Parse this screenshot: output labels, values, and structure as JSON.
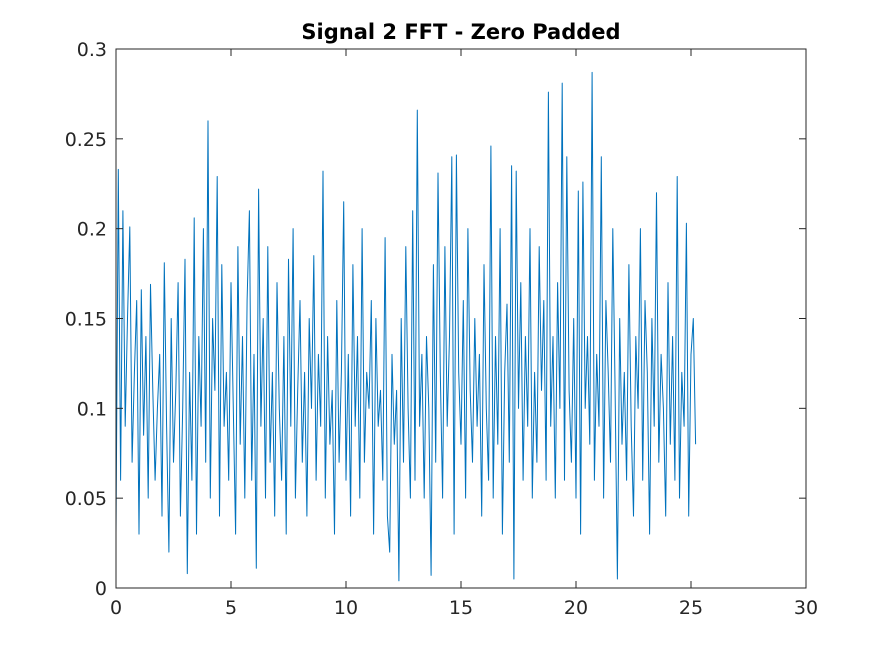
{
  "chart_data": {
    "type": "line",
    "title": "Signal 2 FFT - Zero Padded",
    "xlabel": "",
    "ylabel": "",
    "xlim": [
      0,
      30
    ],
    "ylim": [
      0,
      0.3
    ],
    "xticks": [
      0,
      5,
      10,
      15,
      20,
      25,
      30
    ],
    "yticks": [
      0,
      0.05,
      0.1,
      0.15,
      0.2,
      0.25,
      0.3
    ],
    "xtick_labels": [
      "0",
      "5",
      "10",
      "15",
      "20",
      "25",
      "30"
    ],
    "ytick_labels": [
      "0",
      "0.05",
      "0.1",
      "0.15",
      "0.2",
      "0.25",
      "0.3"
    ],
    "grid": false,
    "series_color": "#0072BD",
    "series": [
      {
        "x_start": 0,
        "x_step": 0.1,
        "values": [
          0.03,
          0.233,
          0.06,
          0.21,
          0.09,
          0.15,
          0.201,
          0.07,
          0.12,
          0.16,
          0.03,
          0.166,
          0.085,
          0.14,
          0.05,
          0.169,
          0.11,
          0.06,
          0.1,
          0.13,
          0.04,
          0.181,
          0.09,
          0.02,
          0.15,
          0.07,
          0.11,
          0.17,
          0.04,
          0.1,
          0.183,
          0.008,
          0.12,
          0.06,
          0.206,
          0.03,
          0.14,
          0.09,
          0.2,
          0.07,
          0.26,
          0.05,
          0.15,
          0.11,
          0.229,
          0.04,
          0.18,
          0.09,
          0.12,
          0.06,
          0.17,
          0.1,
          0.03,
          0.19,
          0.08,
          0.14,
          0.05,
          0.16,
          0.21,
          0.06,
          0.13,
          0.011,
          0.222,
          0.09,
          0.15,
          0.05,
          0.19,
          0.07,
          0.12,
          0.04,
          0.17,
          0.1,
          0.06,
          0.14,
          0.03,
          0.183,
          0.09,
          0.2,
          0.05,
          0.11,
          0.16,
          0.07,
          0.12,
          0.04,
          0.15,
          0.1,
          0.185,
          0.06,
          0.13,
          0.09,
          0.232,
          0.05,
          0.14,
          0.08,
          0.11,
          0.03,
          0.16,
          0.07,
          0.12,
          0.215,
          0.06,
          0.13,
          0.04,
          0.18,
          0.09,
          0.14,
          0.05,
          0.2,
          0.07,
          0.12,
          0.1,
          0.16,
          0.03,
          0.15,
          0.09,
          0.11,
          0.06,
          0.195,
          0.04,
          0.02,
          0.13,
          0.08,
          0.11,
          0.004,
          0.15,
          0.07,
          0.19,
          0.1,
          0.05,
          0.21,
          0.06,
          0.266,
          0.09,
          0.13,
          0.05,
          0.14,
          0.1,
          0.007,
          0.18,
          0.07,
          0.231,
          0.12,
          0.05,
          0.19,
          0.09,
          0.14,
          0.24,
          0.03,
          0.241,
          0.12,
          0.08,
          0.16,
          0.05,
          0.2,
          0.11,
          0.07,
          0.15,
          0.09,
          0.13,
          0.04,
          0.18,
          0.1,
          0.06,
          0.246,
          0.05,
          0.14,
          0.08,
          0.2,
          0.03,
          0.12,
          0.158,
          0.07,
          0.235,
          0.005,
          0.232,
          0.1,
          0.17,
          0.06,
          0.14,
          0.09,
          0.2,
          0.05,
          0.12,
          0.07,
          0.19,
          0.11,
          0.16,
          0.06,
          0.276,
          0.09,
          0.14,
          0.05,
          0.17,
          0.1,
          0.281,
          0.06,
          0.24,
          0.11,
          0.07,
          0.15,
          0.05,
          0.221,
          0.03,
          0.226,
          0.1,
          0.14,
          0.08,
          0.287,
          0.06,
          0.13,
          0.09,
          0.24,
          0.05,
          0.16,
          0.12,
          0.07,
          0.2,
          0.11,
          0.005,
          0.15,
          0.08,
          0.12,
          0.06,
          0.18,
          0.09,
          0.04,
          0.14,
          0.1,
          0.2,
          0.06,
          0.16,
          0.12,
          0.03,
          0.15,
          0.09,
          0.22,
          0.07,
          0.13,
          0.1,
          0.04,
          0.17,
          0.08,
          0.14,
          0.06,
          0.229,
          0.05,
          0.12,
          0.09,
          0.203,
          0.04,
          0.13,
          0.15,
          0.08
        ]
      }
    ]
  }
}
